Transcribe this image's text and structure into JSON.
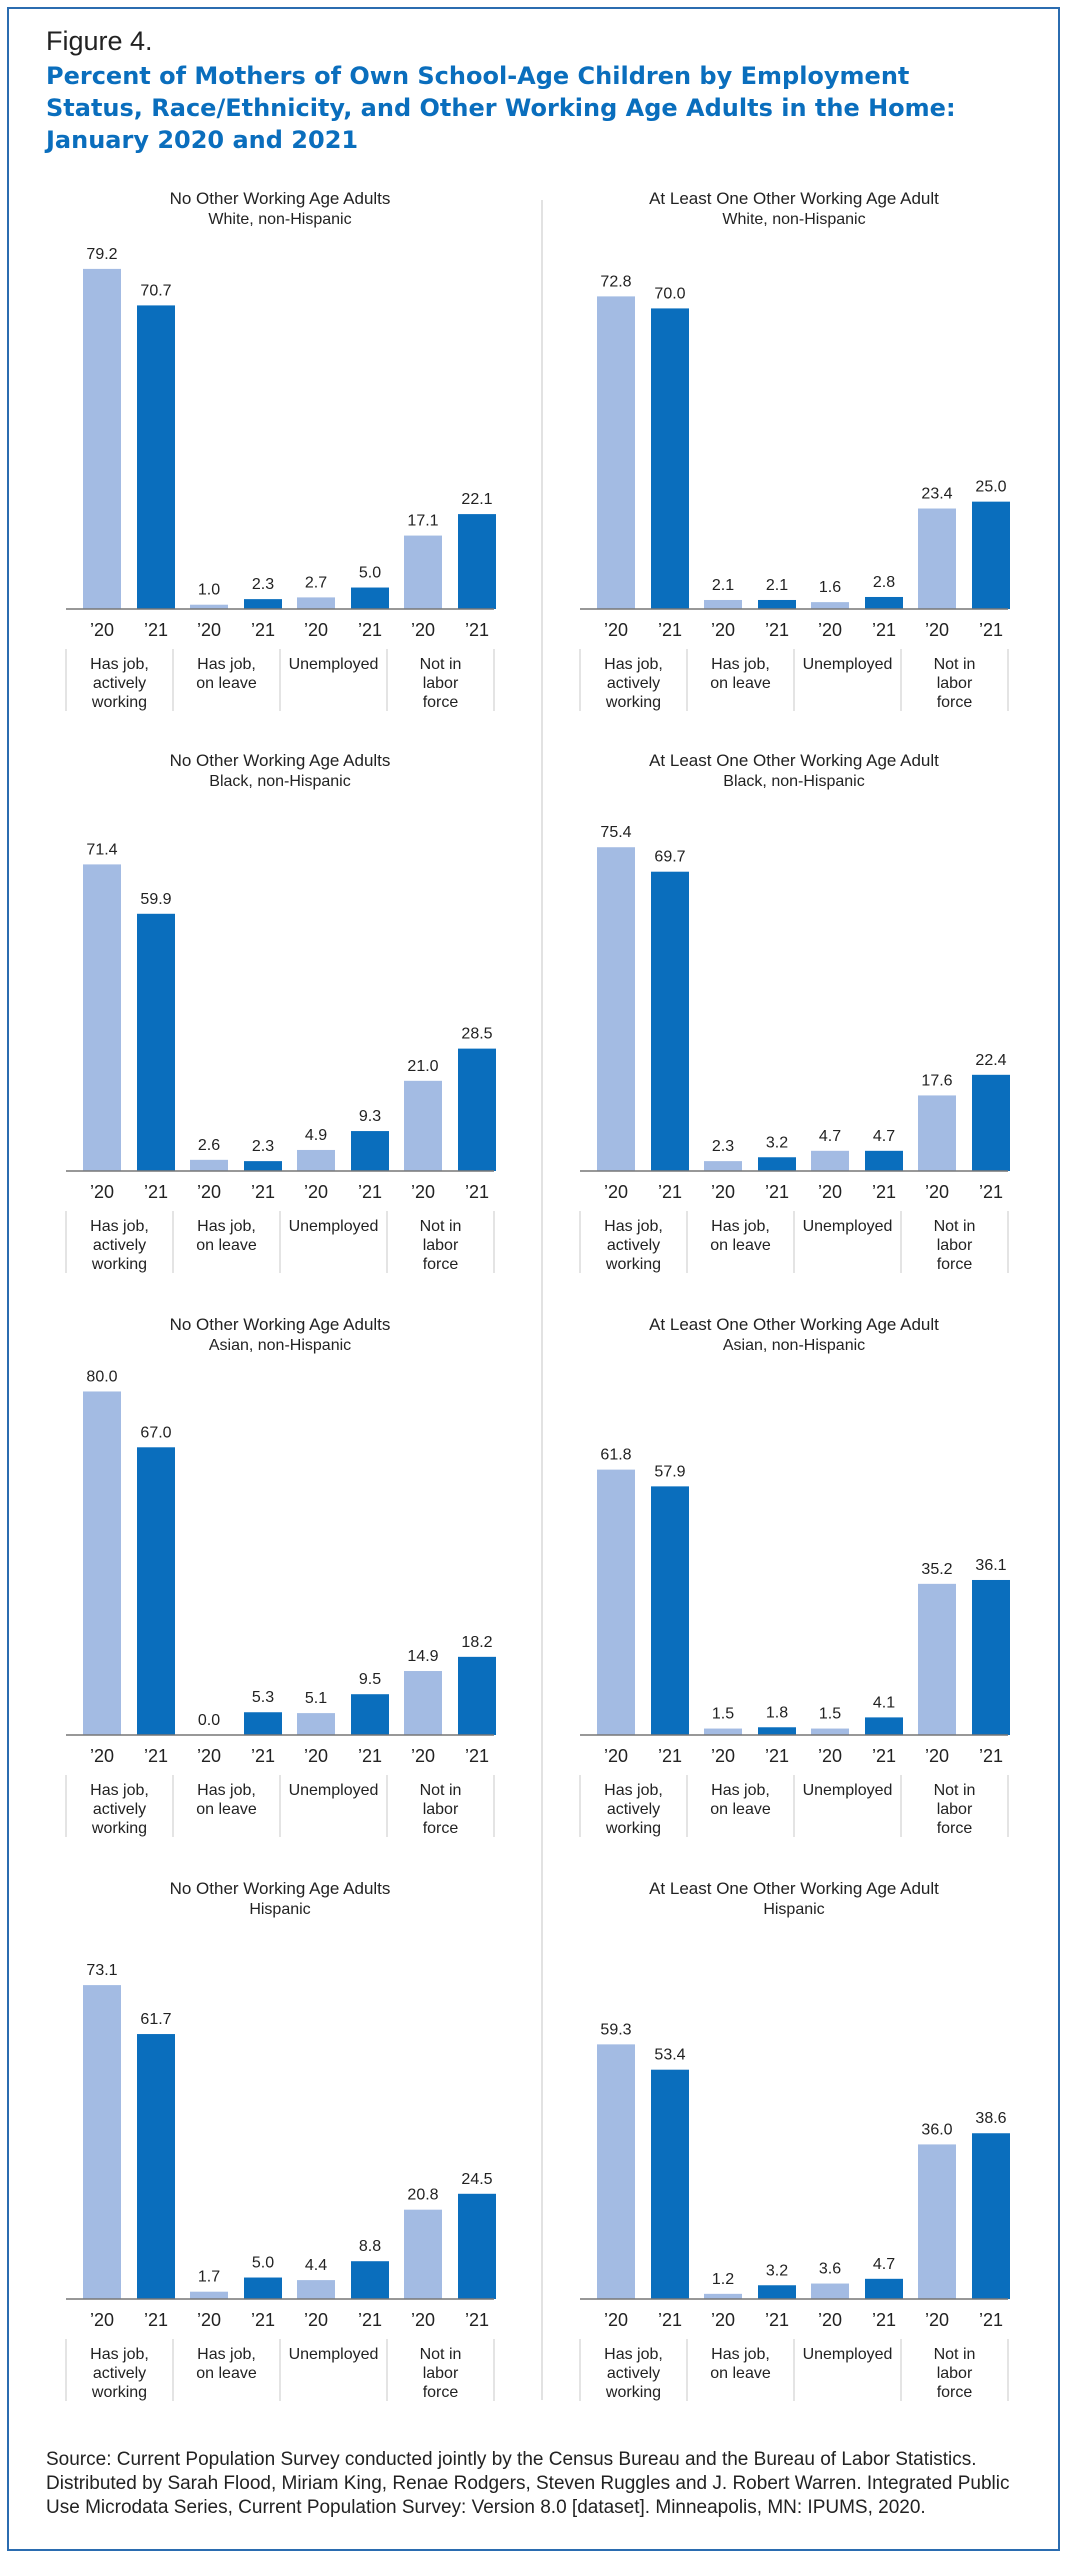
{
  "figure_label": "Figure 4.",
  "title": "Percent of Mothers of Own School-Age Children by Employment Status, Race/Ethnicity, and Other Working Age Adults in the Home: January 2020 and 2021",
  "source": "Source: Current Population Survey conducted jointly by the Census Bureau and the Bureau of Labor Statistics. Distributed by Sarah Flood, Miriam King, Renae Rodgers, Steven Ruggles and J. Robert Warren. Integrated Public Use Microdata Series, Current Population Survey: Version 8.0 [dataset]. Minneapolis, MN: IPUMS, 2020.",
  "colors": {
    "year_2020": "#a3bbe3",
    "year_2021": "#0a6ebd",
    "title": "#0a6ebd",
    "axis": "#777777"
  },
  "chart_data": [
    {
      "type": "bar",
      "title": "No Other Working Age Adults",
      "subtitle": "White, non-Hispanic",
      "categories": [
        "Has job,\nactively\nworking",
        "Has job,\non leave",
        "Unemployed",
        "Not in\nlabor\nforce"
      ],
      "series": [
        {
          "name": "’2020",
          "tick": "’20",
          "values": [
            79.2,
            1.0,
            2.7,
            17.1
          ]
        },
        {
          "name": "’2021",
          "tick": "’21",
          "values": [
            70.7,
            2.3,
            5.0,
            22.1
          ]
        }
      ],
      "ylim": [
        0,
        85
      ],
      "grid": false,
      "legend": "none"
    },
    {
      "type": "bar",
      "title": "At Least One Other Working Age Adult",
      "subtitle": "White, non-Hispanic",
      "categories": [
        "Has job,\nactively\nworking",
        "Has job,\non leave",
        "Unemployed",
        "Not in\nlabor\nforce"
      ],
      "series": [
        {
          "name": "’2020",
          "tick": "’20",
          "values": [
            72.8,
            2.1,
            1.6,
            23.4
          ]
        },
        {
          "name": "’2021",
          "tick": "’21",
          "values": [
            70.0,
            2.1,
            2.8,
            25.0
          ]
        }
      ],
      "ylim": [
        0,
        85
      ],
      "grid": false,
      "legend": "none"
    },
    {
      "type": "bar",
      "title": "No Other Working Age Adults",
      "subtitle": "Black, non-Hispanic",
      "categories": [
        "Has job,\nactively\nworking",
        "Has job,\non leave",
        "Unemployed",
        "Not in\nlabor\nforce"
      ],
      "series": [
        {
          "name": "’2020",
          "tick": "’20",
          "values": [
            71.4,
            2.6,
            4.9,
            21.0
          ]
        },
        {
          "name": "’2021",
          "tick": "’21",
          "values": [
            59.9,
            2.3,
            9.3,
            28.5
          ]
        }
      ],
      "ylim": [
        0,
        85
      ],
      "grid": false,
      "legend": "none"
    },
    {
      "type": "bar",
      "title": "At Least One Other Working Age Adult",
      "subtitle": "Black, non-Hispanic",
      "categories": [
        "Has job,\nactively\nworking",
        "Has job,\non leave",
        "Unemployed",
        "Not in\nlabor\nforce"
      ],
      "series": [
        {
          "name": "’2020",
          "tick": "’20",
          "values": [
            75.4,
            2.3,
            4.7,
            17.6
          ]
        },
        {
          "name": "’2021",
          "tick": "’21",
          "values": [
            69.7,
            3.2,
            4.7,
            22.4
          ]
        }
      ],
      "ylim": [
        0,
        85
      ],
      "grid": false,
      "legend": "none"
    },
    {
      "type": "bar",
      "title": "No Other Working Age Adults",
      "subtitle": "Asian, non-Hispanic",
      "categories": [
        "Has job,\nactively\nworking",
        "Has job,\non leave",
        "Unemployed",
        "Not in\nlabor\nforce"
      ],
      "series": [
        {
          "name": "’2020",
          "tick": "’20",
          "values": [
            80.0,
            0.0,
            5.1,
            14.9
          ]
        },
        {
          "name": "’2021",
          "tick": "’21",
          "values": [
            67.0,
            5.3,
            9.5,
            18.2
          ]
        }
      ],
      "ylim": [
        0,
        85
      ],
      "grid": false,
      "legend": "none"
    },
    {
      "type": "bar",
      "title": "At Least One Other Working Age Adult",
      "subtitle": "Asian, non-Hispanic",
      "categories": [
        "Has job,\nactively\nworking",
        "Has job,\non leave",
        "Unemployed",
        "Not in\nlabor\nforce"
      ],
      "series": [
        {
          "name": "’2020",
          "tick": "’20",
          "values": [
            61.8,
            1.5,
            1.5,
            35.2
          ]
        },
        {
          "name": "’2021",
          "tick": "’21",
          "values": [
            57.9,
            1.8,
            4.1,
            36.1
          ]
        }
      ],
      "ylim": [
        0,
        85
      ],
      "grid": false,
      "legend": "none"
    },
    {
      "type": "bar",
      "title": "No Other Working Age Adults",
      "subtitle": "Hispanic",
      "categories": [
        "Has job,\nactively\nworking",
        "Has job,\non leave",
        "Unemployed",
        "Not in\nlabor\nforce"
      ],
      "series": [
        {
          "name": "’2020",
          "tick": "’20",
          "values": [
            73.1,
            1.7,
            4.4,
            20.8
          ]
        },
        {
          "name": "’2021",
          "tick": "’21",
          "values": [
            61.7,
            5.0,
            8.8,
            24.5
          ]
        }
      ],
      "ylim": [
        0,
        85
      ],
      "grid": false,
      "legend": "none"
    },
    {
      "type": "bar",
      "title": "At Least One Other Working Age Adult",
      "subtitle": "Hispanic",
      "categories": [
        "Has job,\nactively\nworking",
        "Has job,\non leave",
        "Unemployed",
        "Not in\nlabor\nforce"
      ],
      "series": [
        {
          "name": "’2020",
          "tick": "’20",
          "values": [
            59.3,
            1.2,
            3.6,
            36.0
          ]
        },
        {
          "name": "’2021",
          "tick": "’21",
          "values": [
            53.4,
            3.2,
            4.7,
            38.6
          ]
        }
      ],
      "ylim": [
        0,
        85
      ],
      "grid": false,
      "legend": "none"
    }
  ]
}
